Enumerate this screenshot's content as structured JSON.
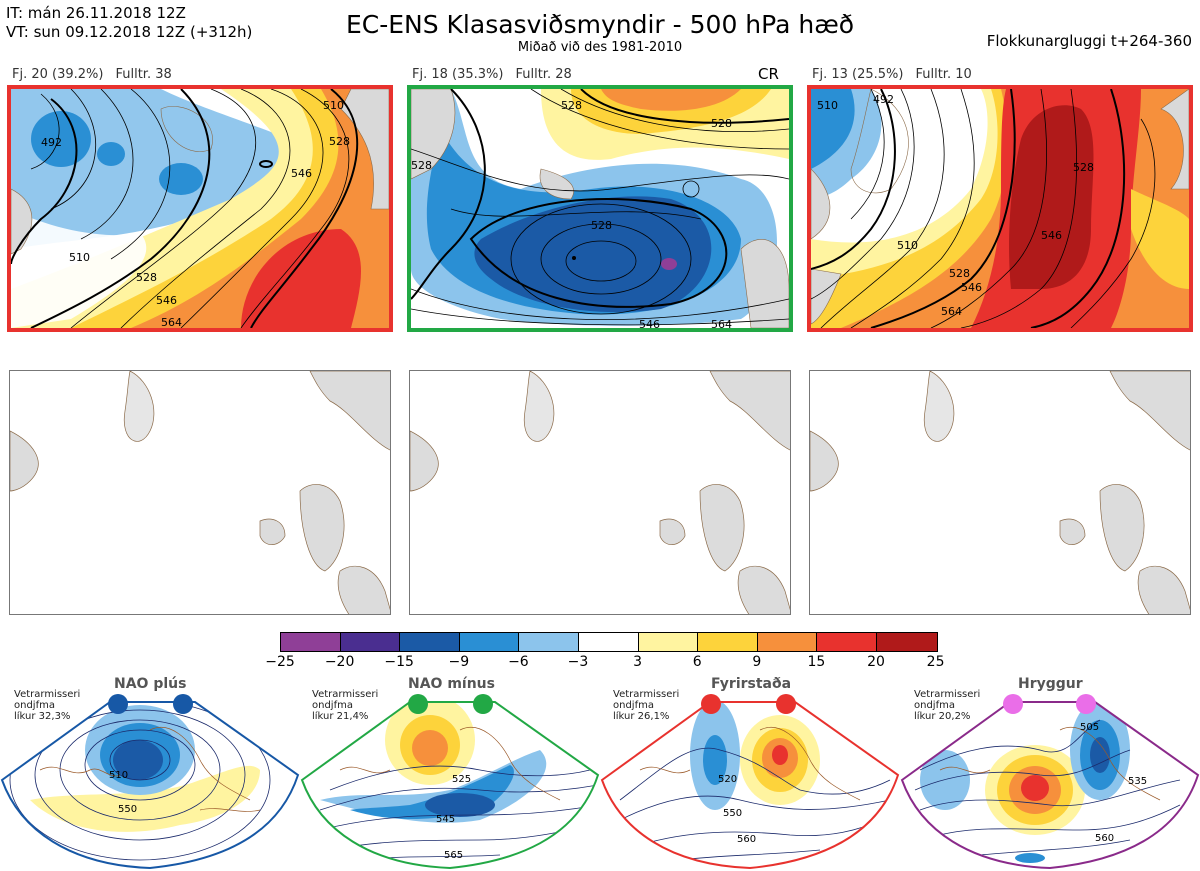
{
  "header": {
    "init_line": "IT: mán 26.11.2018 12Z",
    "valid_line": "VT: sun 09.12.2018 12Z  (+312h)",
    "title": "EC-ENS Klasasviðsmyndir - 500 hPa hæð",
    "subtitle": "Miðað við des 1981-2010",
    "window": "Flokkunargluggi t+264-360"
  },
  "panels": [
    {
      "fj": "Fj. 20 (39.2%)",
      "fulltr": "Fulltr. 38",
      "border": "#e8322e",
      "tag": "",
      "contours": [
        "492",
        "510",
        "528",
        "546",
        "564",
        "510",
        "528",
        "546"
      ]
    },
    {
      "fj": "Fj. 18 (35.3%)",
      "fulltr": "Fulltr. 28",
      "border": "#22a845",
      "tag": "CR",
      "contours": [
        "528",
        "528",
        "528",
        "528",
        "546",
        "564"
      ]
    },
    {
      "fj": "Fj. 13 (25.5%)",
      "fulltr": "Fulltr. 10",
      "border": "#e8322e",
      "tag": "",
      "contours": [
        "510",
        "492",
        "510",
        "528",
        "528",
        "546",
        "564",
        "546"
      ]
    }
  ],
  "colorbar": {
    "colors": [
      "#8f3f97",
      "#4a2e90",
      "#1b5aa6",
      "#2a8fd4",
      "#8cc4ec",
      "#ffffff",
      "#fff4a0",
      "#fdd33b",
      "#f6903c",
      "#e8322e",
      "#b01a1a"
    ],
    "ticks": [
      "−25",
      "−20",
      "−15",
      "−9",
      "−6",
      "−3",
      "3",
      "6",
      "9",
      "15",
      "20",
      "25"
    ]
  },
  "regimes": [
    {
      "name": "NAO plús",
      "note": [
        "Vetrarmisseri",
        "ondjfma",
        "líkur 32,3%"
      ],
      "color": "#1758a6",
      "labels": [
        "510",
        "550"
      ]
    },
    {
      "name": "NAO mínus",
      "note": [
        "Vetrarmisseri",
        "ondjfma",
        "líkur 21,4%"
      ],
      "color": "#22a845",
      "labels": [
        "525",
        "545",
        "565"
      ]
    },
    {
      "name": "Fyrirstaða",
      "note": [
        "Vetrarmisseri",
        "ondjfma",
        "líkur 26,1%"
      ],
      "color": "#e8322e",
      "labels": [
        "520",
        "550",
        "560"
      ]
    },
    {
      "name": "Hryggur",
      "note": [
        "Vetrarmisseri",
        "ondjfma",
        "líkur 20,2%"
      ],
      "color": "#8a2a8a",
      "labels": [
        "505",
        "535",
        "560"
      ]
    }
  ]
}
